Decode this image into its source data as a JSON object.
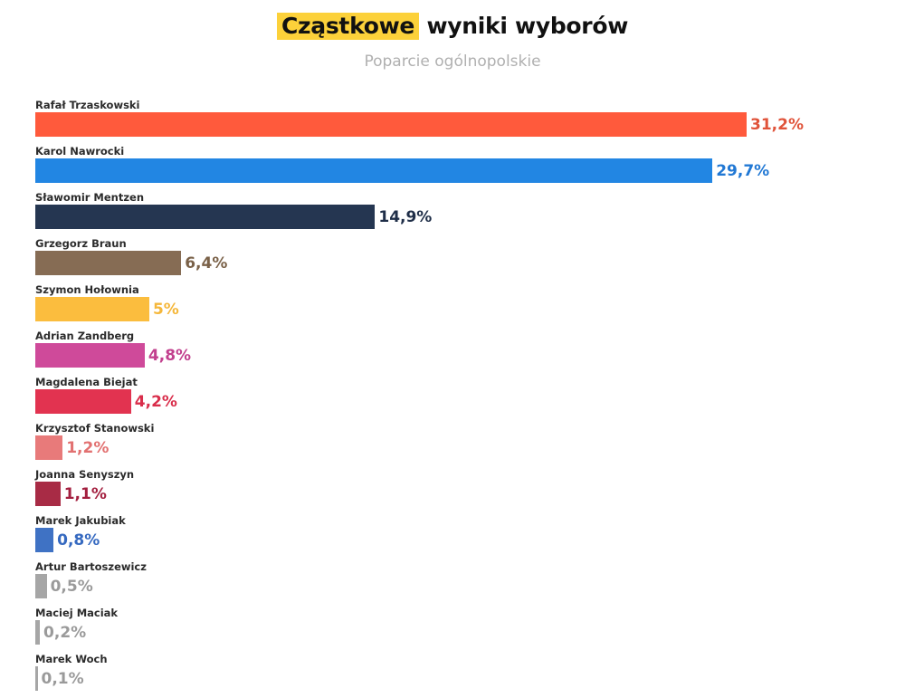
{
  "header": {
    "title_highlight": "Cząstkowe",
    "title_rest": "wyniki wyborów",
    "subtitle": "Poparcie ogólnopolskie"
  },
  "colors": {
    "highlight": "#fcd13a"
  },
  "chart_data": {
    "type": "bar",
    "orientation": "horizontal",
    "title": "Cząstkowe wyniki wyborów",
    "subtitle": "Poparcie ogólnopolskie",
    "xlabel": "",
    "ylabel": "",
    "grid": false,
    "legend": null,
    "unit": "%",
    "categories": [
      "Rafał Trzaskowski",
      "Karol Nawrocki",
      "Sławomir Mentzen",
      "Grzegorz Braun",
      "Szymon Hołownia",
      "Adrian Zandberg",
      "Magdalena Biejat",
      "Krzysztof Stanowski",
      "Joanna Senyszyn",
      "Marek Jakubiak",
      "Artur Bartoszewicz",
      "Maciej Maciak",
      "Marek Woch"
    ],
    "values": [
      31.2,
      29.7,
      14.9,
      6.4,
      5,
      4.8,
      4.2,
      1.2,
      1.1,
      0.8,
      0.5,
      0.2,
      0.1
    ],
    "labels": [
      "31,2%",
      "29,7%",
      "14,9%",
      "6,4%",
      "5%",
      "4,8%",
      "4,2%",
      "1,2%",
      "1,1%",
      "0,8%",
      "0,5%",
      "0,2%",
      "0,1%"
    ],
    "bar_colors": [
      "#ff5a3c",
      "#2286e3",
      "#253651",
      "#866c54",
      "#fbbd3e",
      "#cf4a9a",
      "#e23350",
      "#e87a7a",
      "#a82b45",
      "#3f72c4",
      "#a6a6a6",
      "#a6a6a6",
      "#a6a6a6"
    ],
    "label_colors": [
      "#e0533a",
      "#2178d4",
      "#1f2e48",
      "#7a6148",
      "#f5b73a",
      "#c2408e",
      "#d92e4b",
      "#e27171",
      "#a31f3f",
      "#3569c0",
      "#9a9a9a",
      "#9a9a9a",
      "#9a9a9a"
    ]
  }
}
